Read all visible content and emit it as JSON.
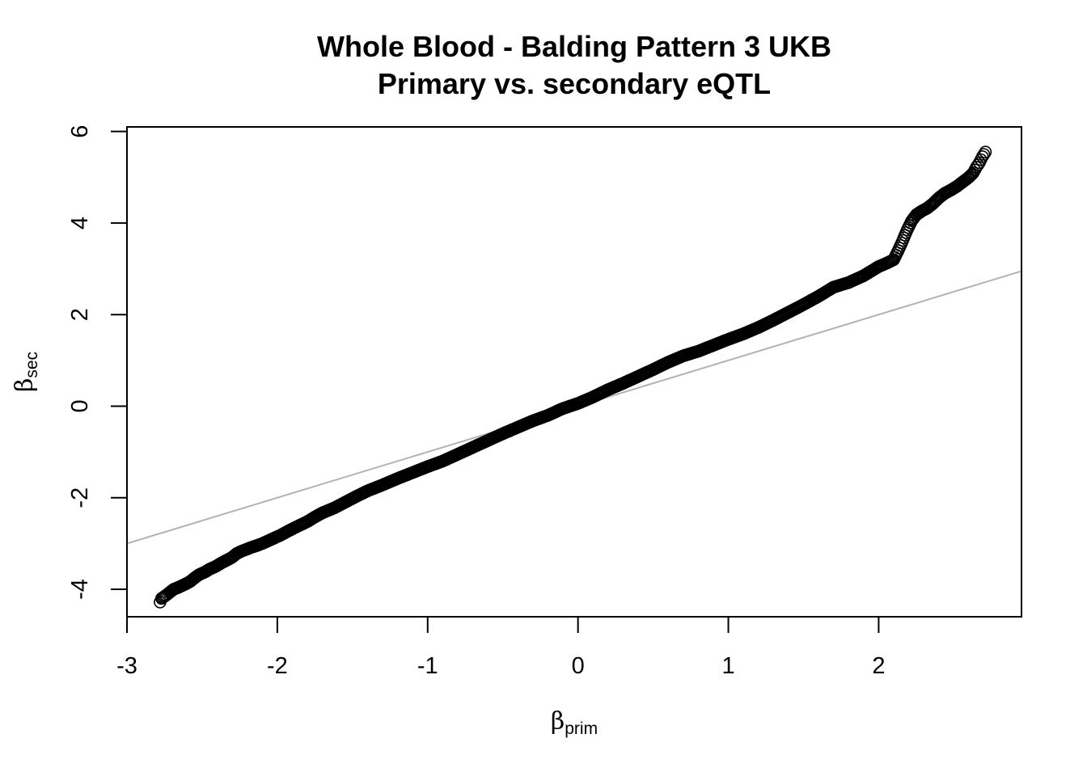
{
  "chart_data": {
    "type": "scatter",
    "title": "Whole Blood - Balding Pattern 3 UKB",
    "subtitle": "Primary vs. secondary eQTL",
    "xlabel": {
      "symbol": "β",
      "subscript": "prim"
    },
    "ylabel": {
      "symbol": "β",
      "subscript": "sec"
    },
    "xlim": [
      -3,
      2.95
    ],
    "ylim": [
      -4.6,
      6.1
    ],
    "x_ticks": [
      -3,
      -2,
      -1,
      0,
      1,
      2
    ],
    "x_tick_labels": [
      "-3",
      "-2",
      "-1",
      "0",
      "1",
      "2"
    ],
    "y_ticks": [
      -4,
      -2,
      0,
      2,
      4,
      6
    ],
    "y_tick_labels": [
      "-4",
      "-2",
      "0",
      "2",
      "4",
      "6"
    ],
    "reference_line": {
      "type": "identity",
      "intercept": 0,
      "slope": 1,
      "color": "#b3b3b3"
    },
    "marker": {
      "shape": "open-circle",
      "color": "#000000"
    },
    "grid": false,
    "series": [
      {
        "points_summary": "dense open-circle points forming a quantile curve",
        "x": [
          -2.78,
          -2.77,
          -2.74,
          -2.72,
          -2.69,
          -2.66,
          -2.62,
          -2.58,
          -2.55,
          -2.52,
          -2.48,
          -2.45,
          -2.41,
          -2.38,
          -2.34,
          -2.3,
          -2.27,
          -2.24,
          -2.2,
          -2.17,
          -2.14,
          -2.1,
          -2.06,
          -2.02,
          -1.98,
          -1.94,
          -1.9,
          -1.85,
          -1.8,
          -1.75,
          -1.7,
          -1.62,
          -1.55,
          -1.48,
          -1.4,
          -1.3,
          -1.2,
          -1.1,
          -1.0,
          -0.9,
          -0.8,
          -0.7,
          -0.6,
          -0.5,
          -0.4,
          -0.3,
          -0.2,
          -0.1,
          0.0,
          0.1,
          0.2,
          0.3,
          0.4,
          0.5,
          0.6,
          0.7,
          0.8,
          0.9,
          1.0,
          1.1,
          1.2,
          1.3,
          1.4,
          1.5,
          1.6,
          1.7,
          1.8,
          1.9,
          1.95,
          2.0,
          2.05,
          2.1,
          2.13,
          2.16,
          2.19,
          2.22,
          2.25,
          2.28,
          2.32,
          2.36,
          2.4,
          2.44,
          2.48,
          2.52,
          2.56,
          2.6,
          2.63,
          2.65,
          2.67,
          2.69,
          2.71
        ],
        "y": [
          -4.28,
          -4.2,
          -4.13,
          -4.08,
          -4.0,
          -3.96,
          -3.9,
          -3.83,
          -3.75,
          -3.68,
          -3.62,
          -3.56,
          -3.5,
          -3.44,
          -3.37,
          -3.3,
          -3.22,
          -3.17,
          -3.12,
          -3.08,
          -3.05,
          -3.0,
          -2.94,
          -2.88,
          -2.82,
          -2.75,
          -2.68,
          -2.6,
          -2.52,
          -2.42,
          -2.33,
          -2.22,
          -2.1,
          -1.98,
          -1.85,
          -1.72,
          -1.58,
          -1.45,
          -1.32,
          -1.2,
          -1.05,
          -0.9,
          -0.75,
          -0.6,
          -0.46,
          -0.32,
          -0.2,
          -0.05,
          0.06,
          0.2,
          0.36,
          0.5,
          0.65,
          0.8,
          0.96,
          1.1,
          1.2,
          1.33,
          1.46,
          1.58,
          1.72,
          1.88,
          2.05,
          2.22,
          2.4,
          2.6,
          2.7,
          2.85,
          2.95,
          3.05,
          3.12,
          3.2,
          3.4,
          3.62,
          3.85,
          4.05,
          4.18,
          4.25,
          4.32,
          4.42,
          4.55,
          4.65,
          4.72,
          4.8,
          4.9,
          5.0,
          5.1,
          5.22,
          5.32,
          5.45,
          5.55
        ]
      }
    ]
  }
}
